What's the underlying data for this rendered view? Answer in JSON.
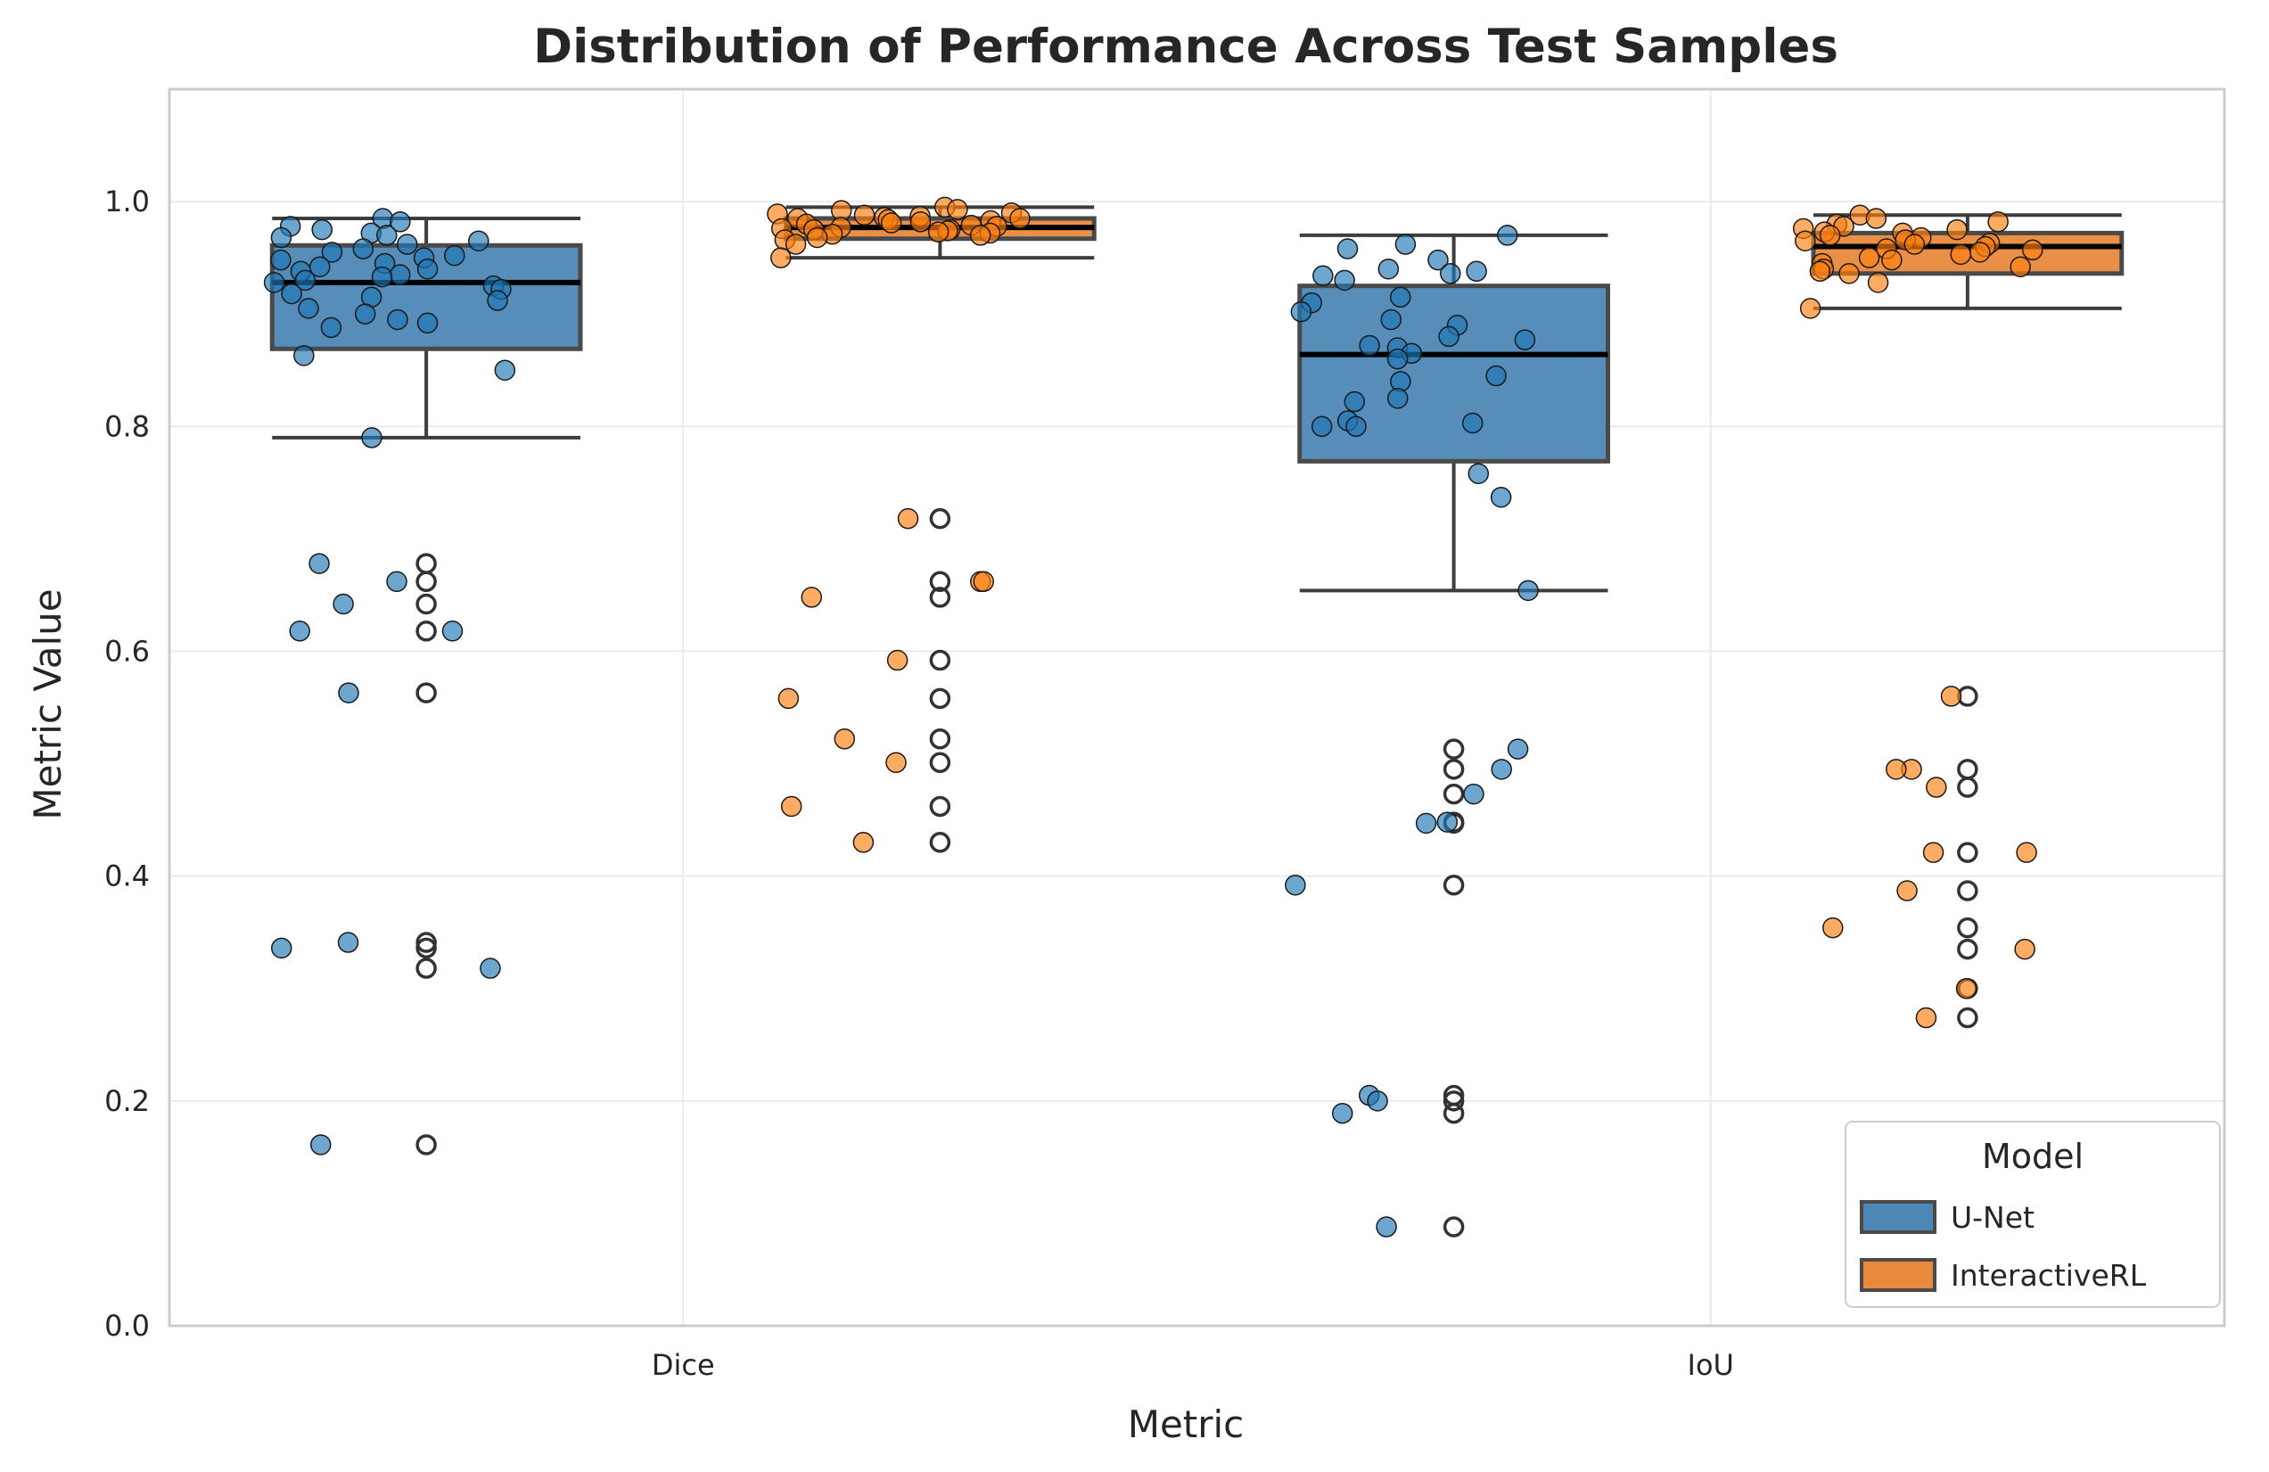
{
  "chart_data": {
    "type": "box",
    "title": "Distribution of Performance Across Test Samples",
    "xlabel": "Metric",
    "ylabel": "Metric Value",
    "categories": [
      "Dice",
      "IoU"
    ],
    "ylim": [
      0,
      1.1
    ],
    "yticks": [
      "0.0",
      "0.2",
      "0.4",
      "0.6",
      "0.8",
      "1.0"
    ],
    "grid": true,
    "legend": {
      "title": "Model",
      "placement": "lower-right"
    },
    "series": [
      {
        "name": "U-Net",
        "color": "#1f77b4",
        "box_fill": "#4d87b5",
        "boxes": [
          {
            "category": "Dice",
            "q1": 0.869,
            "median": 0.928,
            "q3": 0.961,
            "whisker_low": 0.79,
            "whisker_high": 0.985,
            "outliers": [
              0.678,
              0.662,
              0.642,
              0.618,
              0.563,
              0.341,
              0.336,
              0.318,
              0.161
            ]
          },
          {
            "category": "IoU",
            "q1": 0.769,
            "median": 0.864,
            "q3": 0.925,
            "whisker_low": 0.654,
            "whisker_high": 0.97,
            "outliers": [
              0.513,
              0.495,
              0.473,
              0.448,
              0.447,
              0.392,
              0.205,
              0.2,
              0.189,
              0.088
            ]
          }
        ],
        "samples": [
          {
            "category": "Dice",
            "values": [
              0.985,
              0.982,
              0.978,
              0.975,
              0.972,
              0.97,
              0.968,
              0.965,
              0.962,
              0.958,
              0.955,
              0.952,
              0.95,
              0.948,
              0.945,
              0.942,
              0.94,
              0.938,
              0.935,
              0.933,
              0.93,
              0.928,
              0.925,
              0.922,
              0.918,
              0.915,
              0.912,
              0.905,
              0.9,
              0.895,
              0.892,
              0.888,
              0.863,
              0.85,
              0.79,
              0.678,
              0.662,
              0.642,
              0.618,
              0.618,
              0.563,
              0.341,
              0.336,
              0.318,
              0.161
            ]
          },
          {
            "category": "IoU",
            "values": [
              0.97,
              0.962,
              0.958,
              0.948,
              0.94,
              0.938,
              0.936,
              0.934,
              0.93,
              0.915,
              0.91,
              0.902,
              0.895,
              0.89,
              0.88,
              0.877,
              0.872,
              0.87,
              0.865,
              0.86,
              0.845,
              0.84,
              0.825,
              0.822,
              0.805,
              0.803,
              0.8,
              0.8,
              0.758,
              0.737,
              0.654,
              0.513,
              0.495,
              0.473,
              0.448,
              0.447,
              0.392,
              0.205,
              0.2,
              0.189,
              0.088
            ]
          }
        ]
      },
      {
        "name": "InteractiveRL",
        "color": "#ff7f0e",
        "box_fill": "#e8893c",
        "boxes": [
          {
            "category": "Dice",
            "q1": 0.967,
            "median": 0.977,
            "q3": 0.985,
            "whisker_low": 0.95,
            "whisker_high": 0.995,
            "outliers": [
              0.718,
              0.662,
              0.648,
              0.592,
              0.558,
              0.522,
              0.501,
              0.462,
              0.43
            ]
          },
          {
            "category": "IoU",
            "q1": 0.936,
            "median": 0.96,
            "q3": 0.972,
            "whisker_low": 0.905,
            "whisker_high": 0.988,
            "outliers": [
              0.56,
              0.495,
              0.479,
              0.421,
              0.387,
              0.354,
              0.335,
              0.3,
              0.274
            ]
          }
        ],
        "samples": [
          {
            "category": "Dice",
            "values": [
              0.995,
              0.993,
              0.992,
              0.99,
              0.989,
              0.988,
              0.987,
              0.986,
              0.985,
              0.985,
              0.984,
              0.983,
              0.982,
              0.981,
              0.98,
              0.979,
              0.978,
              0.977,
              0.976,
              0.975,
              0.975,
              0.974,
              0.973,
              0.972,
              0.971,
              0.97,
              0.968,
              0.966,
              0.962,
              0.95,
              0.718,
              0.662,
              0.662,
              0.648,
              0.592,
              0.558,
              0.522,
              0.501,
              0.462,
              0.43
            ]
          },
          {
            "category": "IoU",
            "values": [
              0.988,
              0.985,
              0.982,
              0.98,
              0.978,
              0.976,
              0.975,
              0.973,
              0.972,
              0.97,
              0.968,
              0.966,
              0.965,
              0.963,
              0.962,
              0.96,
              0.958,
              0.957,
              0.955,
              0.953,
              0.95,
              0.948,
              0.945,
              0.942,
              0.94,
              0.938,
              0.936,
              0.928,
              0.905,
              0.56,
              0.495,
              0.495,
              0.479,
              0.421,
              0.421,
              0.387,
              0.354,
              0.335,
              0.3,
              0.274
            ]
          }
        ]
      }
    ]
  }
}
